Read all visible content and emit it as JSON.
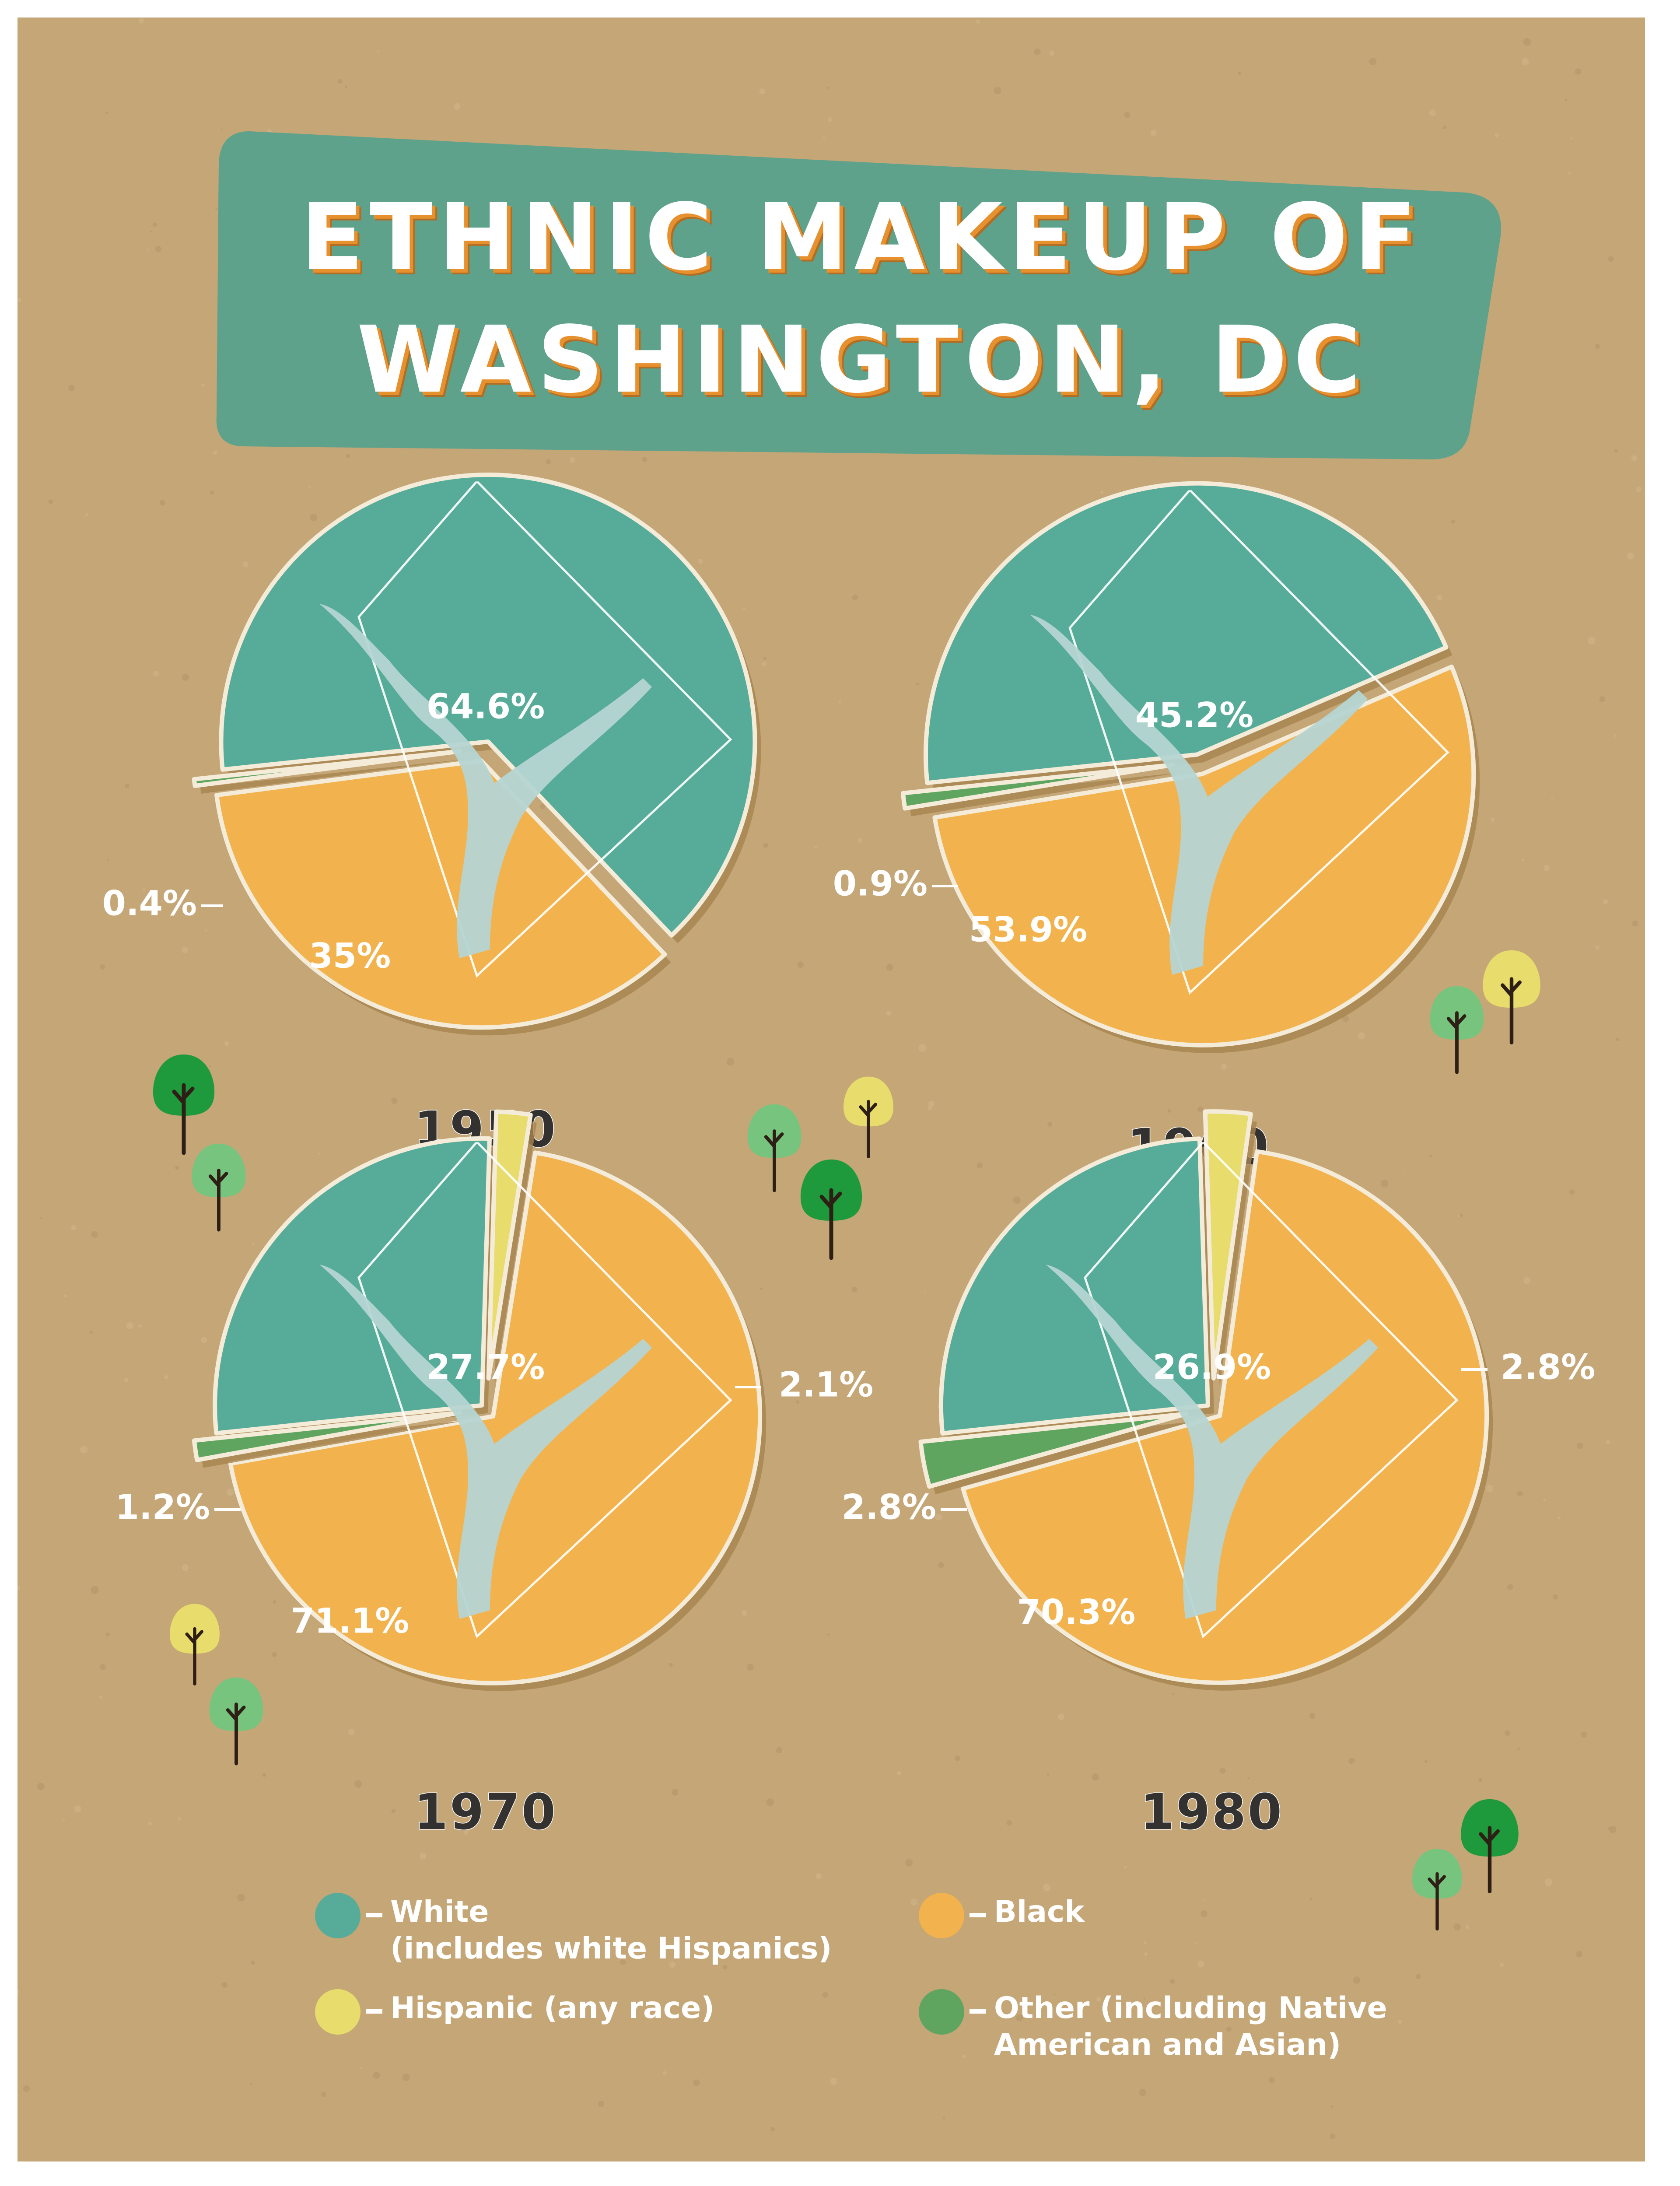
{
  "title": {
    "line1": "ETHNIC MAKEUP OF",
    "line2": "WASHINGTON, DC"
  },
  "colors": {
    "background": "#c4a677",
    "banner": "#5ea28c",
    "white": "#57ab99",
    "black": "#f2b24e",
    "hispanic": "#e7dc6c",
    "other": "#5fa560",
    "river": "#b5d5d3",
    "title_outline": "#e7902e"
  },
  "chart_data": [
    {
      "type": "pie",
      "title": "1950",
      "legend": "bottom",
      "slices": [
        {
          "label": "White (includes white Hispanics)",
          "value": 64.6,
          "display": "64.6%"
        },
        {
          "label": "Black",
          "value": 35,
          "display": "35%"
        },
        {
          "label": "Other (including Native American and Asian)",
          "value": 0.4,
          "display": "0.4%"
        }
      ]
    },
    {
      "type": "pie",
      "title": "1960",
      "legend": "bottom",
      "slices": [
        {
          "label": "White (includes white Hispanics)",
          "value": 45.2,
          "display": "45.2%"
        },
        {
          "label": "Black",
          "value": 53.9,
          "display": "53.9%"
        },
        {
          "label": "Other (including Native American and Asian)",
          "value": 0.9,
          "display": "0.9%"
        }
      ]
    },
    {
      "type": "pie",
      "title": "1970",
      "legend": "bottom",
      "slices": [
        {
          "label": "White (includes white Hispanics)",
          "value": 27.7,
          "display": "27.7%"
        },
        {
          "label": "Hispanic (any race)",
          "value": 2.1,
          "display": "2.1%"
        },
        {
          "label": "Black",
          "value": 71.1,
          "display": "71.1%"
        },
        {
          "label": "Other (including Native American and Asian)",
          "value": 1.2,
          "display": "1.2%"
        }
      ]
    },
    {
      "type": "pie",
      "title": "1980",
      "legend": "bottom",
      "slices": [
        {
          "label": "White (includes white Hispanics)",
          "value": 26.9,
          "display": "26.9%"
        },
        {
          "label": "Hispanic (any race)",
          "value": 2.8,
          "display": "2.8%"
        },
        {
          "label": "Black",
          "value": 70.3,
          "display": "70.3%"
        },
        {
          "label": "Other (including Native American and Asian)",
          "value": 2.8,
          "display": "2.8%"
        }
      ]
    }
  ],
  "legend": {
    "white": {
      "line1": "White",
      "line2": "(includes white Hispanics)"
    },
    "black": {
      "line1": "Black"
    },
    "hispanic": {
      "line1": "Hispanic (any race)"
    },
    "other": {
      "line1": "Other (including Native",
      "line2": "American and Asian)"
    }
  },
  "icons": {
    "tree": "tree-icon",
    "map": "dc-map-icon"
  }
}
